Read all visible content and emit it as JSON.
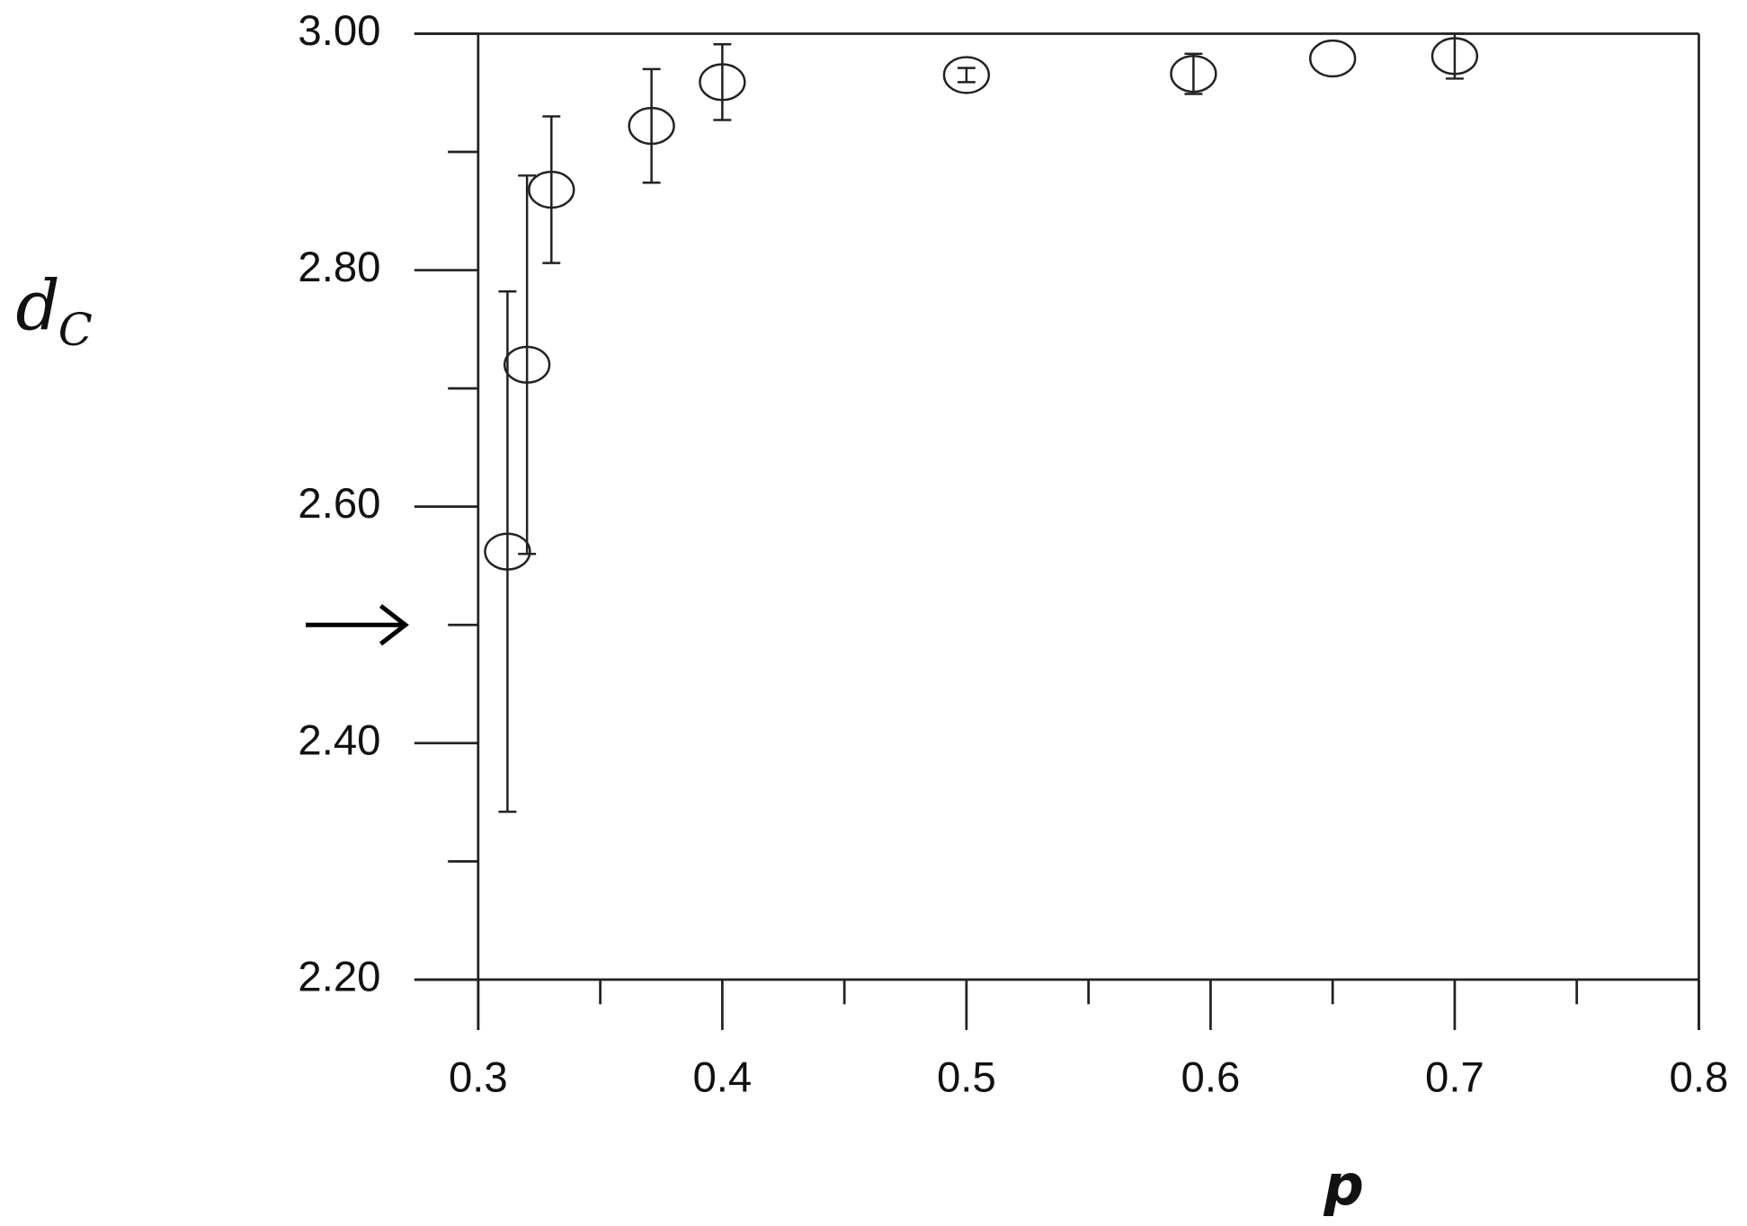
{
  "chart_data": {
    "type": "scatter",
    "x_label": "p",
    "y_label": "d",
    "y_label_subscript": "C",
    "x": [
      0.312,
      0.32,
      0.33,
      0.371,
      0.4,
      0.5,
      0.593,
      0.65,
      0.7
    ],
    "y": [
      2.562,
      2.72,
      2.868,
      2.922,
      2.959,
      2.965,
      2.966,
      2.979,
      2.981
    ],
    "yerr": [
      0.22,
      0.16,
      0.062,
      0.048,
      0.032,
      0.006,
      0.017,
      null,
      0.019
    ],
    "color": "#222222",
    "xlim": [
      0.3,
      0.8
    ],
    "ylim": [
      2.2,
      3.0
    ],
    "xticks": [
      0.3,
      0.4,
      0.5,
      0.6,
      0.7,
      0.8
    ],
    "x_minor_ticks": [
      0.35,
      0.45,
      0.55,
      0.65,
      0.75
    ],
    "yticks": [
      {
        "value": 2.2,
        "label": "2.20"
      },
      {
        "value": 2.4,
        "label": "2.40"
      },
      {
        "value": 2.6,
        "label": "2.60"
      },
      {
        "value": 2.8,
        "label": "2.80"
      },
      {
        "value": 3.0,
        "label": "3.00"
      }
    ],
    "y_minor_ticks": [
      2.3,
      2.5,
      2.7,
      2.9
    ],
    "arrow_y": 2.5
  }
}
